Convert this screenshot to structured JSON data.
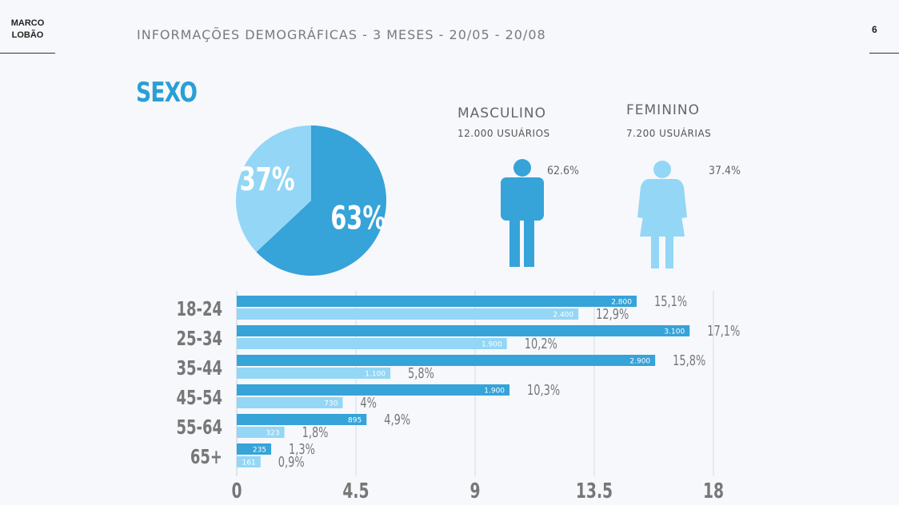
{
  "brand": {
    "line1": "MARCO",
    "line2": "LOBÃO"
  },
  "header": {
    "title": "INFORMAÇÕES DEMOGRÁFICAS - 3 MESES - 20/05 - 20/08",
    "page_number": "6"
  },
  "section": {
    "title": "SEXO"
  },
  "gender": {
    "male": {
      "name": "MASCULINO",
      "count": "12.000 USUÁRIOS",
      "percent": "62.6%",
      "icon": "male-person-icon"
    },
    "female": {
      "name": "FEMININO",
      "count": "7.200 USUÁRIAS",
      "percent": "37.4%",
      "icon": "female-person-icon"
    }
  },
  "colors": {
    "male": "#36a3d9",
    "female": "#94d6f5",
    "title": "#2b9fd4",
    "text": "#6b6b6b"
  },
  "chart_data": [
    {
      "type": "pie",
      "slices": [
        {
          "label": "63%",
          "value": 63,
          "color": "#36a3d9"
        },
        {
          "label": "37%",
          "value": 37,
          "color": "#94d6f5"
        }
      ]
    },
    {
      "type": "bar",
      "orientation": "horizontal",
      "categories": [
        "18-24",
        "25-34",
        "35-44",
        "45-54",
        "55-64",
        "65+"
      ],
      "series": [
        {
          "color": "#36a3d9",
          "values": [
            15.1,
            17.1,
            15.8,
            10.3,
            4.9,
            1.3
          ],
          "value_labels": [
            "15,1%",
            "17,1%",
            "15,8%",
            "10,3%",
            "4,9%",
            "1,3%"
          ],
          "count_labels": [
            "2.800",
            "3.100",
            "2.900",
            "1.900",
            "895",
            "235"
          ]
        },
        {
          "color": "#94d6f5",
          "values": [
            12.9,
            10.2,
            5.8,
            4,
            1.8,
            0.9
          ],
          "value_labels": [
            "12,9%",
            "10,2%",
            "5,8%",
            "4%",
            "1,8%",
            "0,9%"
          ],
          "count_labels": [
            "2.400",
            "1.900",
            "1.100",
            "730",
            "323",
            "161"
          ]
        }
      ],
      "xticks": [
        "0",
        "4.5",
        "9",
        "13.5",
        "18"
      ],
      "xlim": [
        0,
        18
      ],
      "grid": true
    }
  ]
}
